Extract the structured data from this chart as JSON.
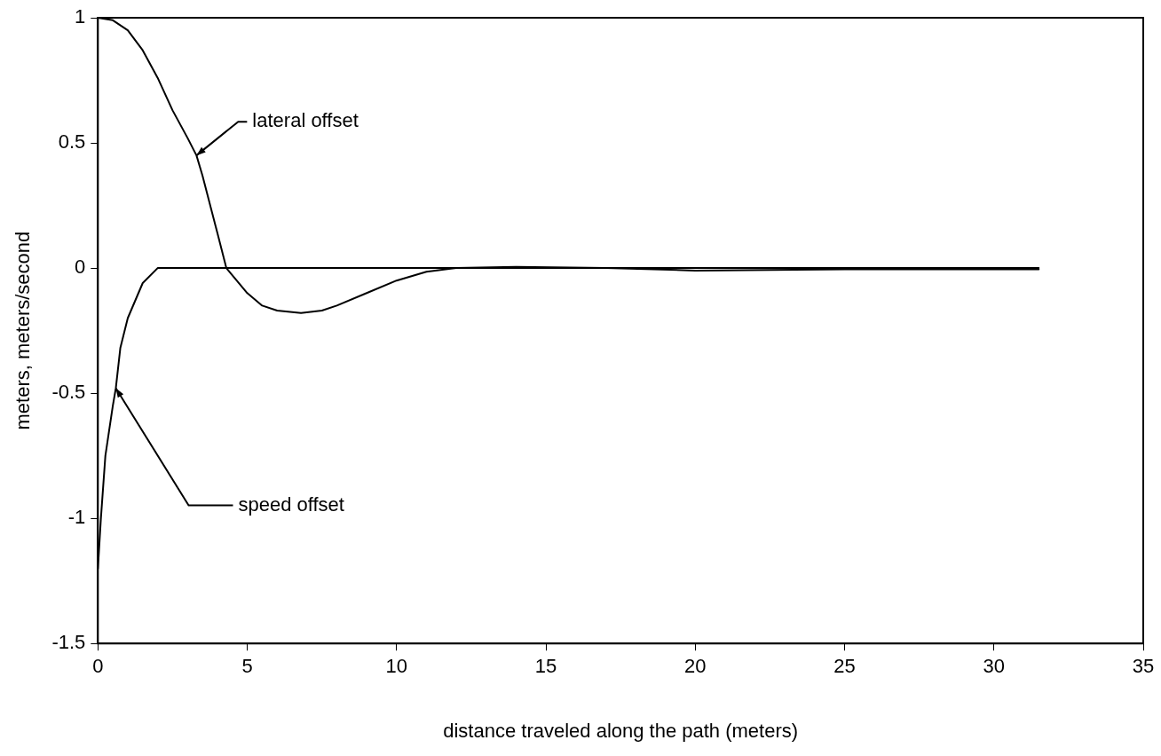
{
  "chart_data": {
    "type": "line",
    "xlabel": "distance traveled along the path (meters)",
    "ylabel": "meters, meters/second",
    "xlim": [
      0,
      35
    ],
    "xticks": [
      0,
      5,
      10,
      15,
      20,
      25,
      30,
      35
    ],
    "ylim": [
      -1.5,
      1
    ],
    "yticks": [
      -1.5,
      -1,
      -0.5,
      0,
      0.5,
      1
    ],
    "grid": false,
    "legend": false,
    "marker": "none",
    "line_style": "solid",
    "series": [
      {
        "color": "#000000",
        "x": [
          0,
          0.5,
          1,
          1.5,
          2,
          2.5,
          3,
          3.3,
          3.5,
          4,
          4.3,
          5,
          5.5,
          6,
          6.8,
          7.5,
          8,
          9,
          10,
          11,
          12,
          14,
          17,
          20,
          25,
          31.5
        ],
        "values": [
          1,
          0.99,
          0.95,
          0.87,
          0.76,
          0.63,
          0.52,
          0.45,
          0.37,
          0.14,
          0,
          -0.1,
          -0.15,
          -0.17,
          -0.18,
          -0.17,
          -0.15,
          -0.1,
          -0.05,
          -0.015,
          0,
          0.005,
          0,
          -0.01,
          -0.005,
          -0.005
        ]
      },
      {
        "color": "#000000",
        "x": [
          0,
          0.1,
          0.25,
          0.5,
          0.6,
          0.75,
          1,
          1.5,
          2,
          5,
          10,
          20,
          31.5
        ],
        "values": [
          -1.2,
          -1,
          -0.75,
          -0.55,
          -0.48,
          -0.32,
          -0.2,
          -0.06,
          0,
          0,
          0,
          0,
          0
        ]
      }
    ],
    "annotations": [
      {
        "text": "lateral offset",
        "x": 3.3,
        "y": 0.45
      },
      {
        "text": "speed offset",
        "x": 0.6,
        "y": -0.48
      }
    ]
  }
}
